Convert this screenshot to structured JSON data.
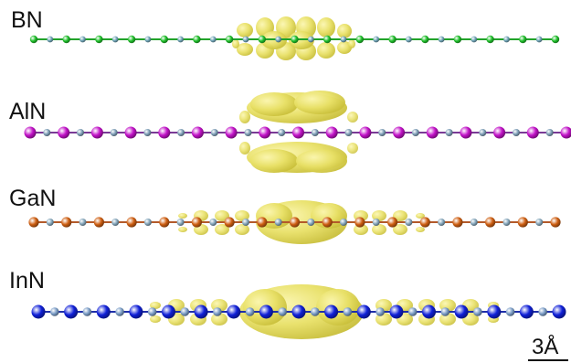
{
  "panels": [
    {
      "label": "BN",
      "bond_color": "#22a32a",
      "atom_a_color": "#1fbf2a",
      "atom_b_color": "#6fa3b6",
      "cloud": "narrow"
    },
    {
      "label": "AlN",
      "bond_color": "#7a3b96",
      "atom_a_color": "#c212c8",
      "atom_b_color": "#7f9fb8",
      "cloud": "double-lobe"
    },
    {
      "label": "GaN",
      "bond_color": "#b35a2a",
      "atom_a_color": "#cf5f12",
      "atom_b_color": "#86a7bc",
      "cloud": "medium"
    },
    {
      "label": "InN",
      "bond_color": "#1f2fa8",
      "atom_a_color": "#1020d8",
      "atom_b_color": "#7b9dc7",
      "cloud": "wide"
    }
  ],
  "scale_bar": {
    "label": "3Å"
  },
  "colors": {
    "isosurface": "#e8e066",
    "isosurface_dark": "#c9bf3a"
  }
}
